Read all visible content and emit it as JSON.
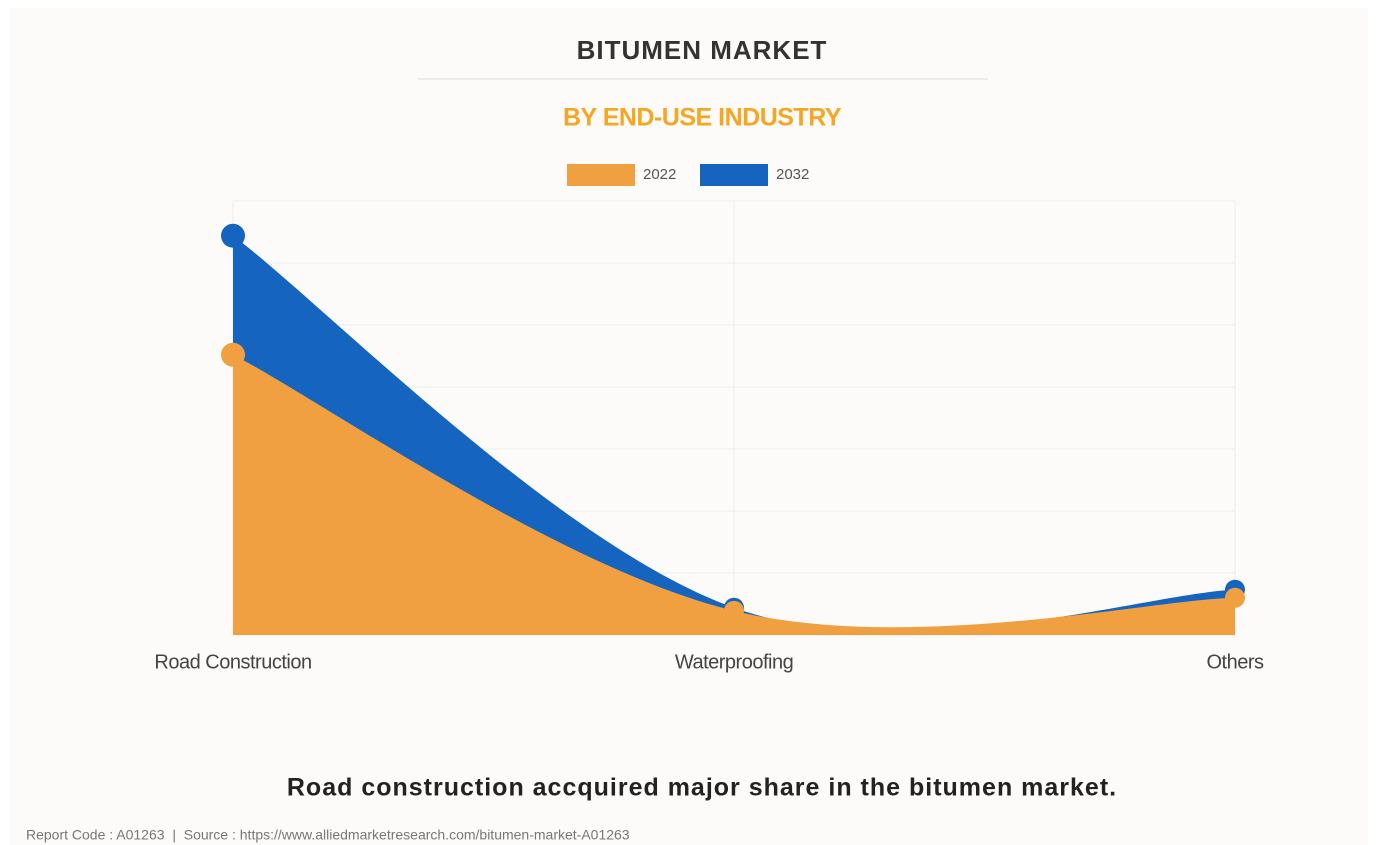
{
  "chart_data": {
    "type": "area",
    "title": "BITUMEN MARKET",
    "subtitle": "BY END-USE INDUSTRY",
    "categories": [
      "Road Construction",
      "Waterproofing",
      "Others"
    ],
    "series": [
      {
        "name": "2022",
        "color": "#f0a040",
        "values": [
          4.52,
          0.39,
          0.6
        ]
      },
      {
        "name": "2032",
        "color": "#1565c0",
        "values": [
          6.44,
          0.44,
          0.73
        ]
      }
    ],
    "ylim": [
      0,
      7
    ],
    "yticks": [
      0,
      1,
      2,
      3,
      4,
      5,
      6,
      7
    ],
    "grid": true,
    "caption": "Road construction accquired major share in the bitumen market.",
    "footer": "Report Code : A01263  |  Source : https://www.alliedmarketresearch.com/bitumen-market-A01263"
  }
}
